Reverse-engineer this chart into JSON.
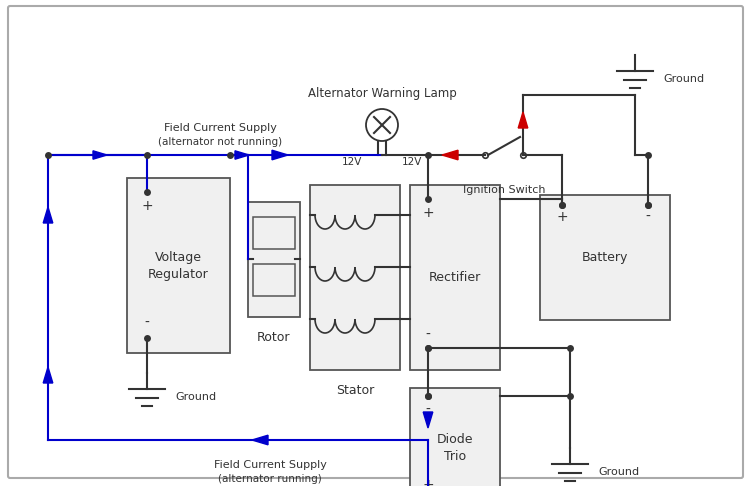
{
  "bg": "#ffffff",
  "blue": "#0000cc",
  "dark": "#333333",
  "red": "#cc0000",
  "box_face": "#f0f0f0",
  "box_edge": "#555555",
  "lw": 1.5,
  "texts": {
    "warning_lamp": "Alternator Warning Lamp",
    "field_top_1": "Field Current Supply",
    "field_top_2": "(alternator not running)",
    "field_bot_1": "Field Current Supply",
    "field_bot_2": "(alternator running)",
    "ignition": "Ignition Switch",
    "ground": "Ground",
    "voltage_reg": "Voltage\nRegulator",
    "rotor": "Rotor",
    "stator": "Stator",
    "rectifier": "Rectifier",
    "diode_trio": "Diode\nTrio",
    "battery": "Battery",
    "12v_l": "12V",
    "12v_r": "12V",
    "plus": "+",
    "minus": "-"
  }
}
